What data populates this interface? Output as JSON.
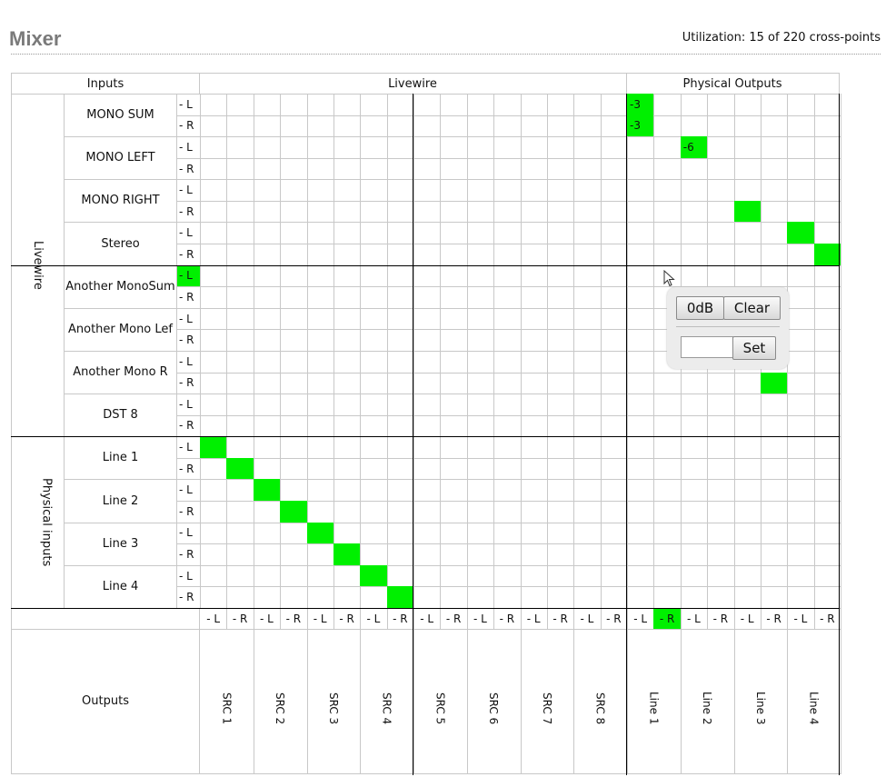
{
  "page": {
    "title": "Mixer",
    "utilization": "Utilization: 15 of 220 cross-points"
  },
  "headers": {
    "inputs": "Inputs",
    "livewire": "Livewire",
    "physical_outputs": "Physical Outputs",
    "group_livewire": "Livewire",
    "group_physical": "Physical inputs",
    "outputs": "Outputs"
  },
  "rows": [
    {
      "label": "MONO SUM",
      "group": "livewire"
    },
    {
      "label": "MONO LEFT",
      "group": "livewire"
    },
    {
      "label": "MONO RIGHT",
      "group": "livewire"
    },
    {
      "label": "Stereo",
      "group": "livewire"
    },
    {
      "label": "Another MonoSum",
      "group": "livewire"
    },
    {
      "label": "Another Mono Lef",
      "group": "livewire"
    },
    {
      "label": "Another Mono R",
      "group": "livewire"
    },
    {
      "label": "DST 8",
      "group": "livewire"
    },
    {
      "label": "Line 1",
      "group": "physical"
    },
    {
      "label": "Line 2",
      "group": "physical"
    },
    {
      "label": "Line 3",
      "group": "physical"
    },
    {
      "label": "Line 4",
      "group": "physical"
    }
  ],
  "columns": [
    "SRC 1",
    "SRC 2",
    "SRC 3",
    "SRC 4",
    "SRC 5",
    "SRC 6",
    "SRC 7",
    "SRC 8",
    "Line 1",
    "Line 2",
    "Line 3",
    "Line 4"
  ],
  "side_labels": [
    "- L",
    "- R"
  ],
  "crosspoints": [
    {
      "row": 0,
      "col": 16,
      "value": "-3"
    },
    {
      "row": 1,
      "col": 16,
      "value": "-3"
    },
    {
      "row": 2,
      "col": 18,
      "value": "-6"
    },
    {
      "row": 5,
      "col": 20,
      "value": ""
    },
    {
      "row": 6,
      "col": 22,
      "value": ""
    },
    {
      "row": 7,
      "col": 23,
      "value": ""
    },
    {
      "row": 13,
      "col": 21,
      "value": ""
    },
    {
      "row": 16,
      "col": 0,
      "value": ""
    },
    {
      "row": 17,
      "col": 1,
      "value": ""
    },
    {
      "row": 18,
      "col": 2,
      "value": ""
    },
    {
      "row": 19,
      "col": 3,
      "value": ""
    },
    {
      "row": 20,
      "col": 4,
      "value": ""
    },
    {
      "row": 21,
      "col": 5,
      "value": ""
    },
    {
      "row": 22,
      "col": 6,
      "value": ""
    },
    {
      "row": 23,
      "col": 7,
      "value": ""
    }
  ],
  "selected_row": 8,
  "selected_col": 17,
  "popup": {
    "zero_db_label": "0dB",
    "clear_label": "Clear",
    "gain_value": "",
    "set_label": "Set"
  },
  "colors": {
    "active": "#00f000",
    "grid": "#c8c8c8",
    "divider": "#000000"
  }
}
